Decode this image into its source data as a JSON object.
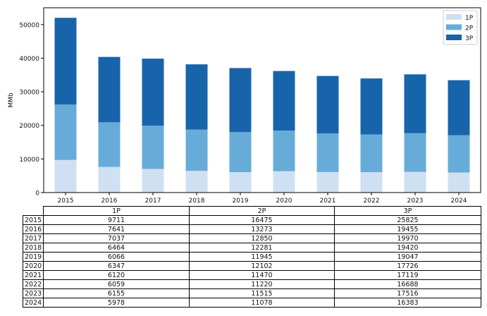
{
  "chart_data": {
    "type": "bar",
    "stacked": true,
    "categories": [
      "2015",
      "2016",
      "2017",
      "2018",
      "2019",
      "2020",
      "2021",
      "2022",
      "2023",
      "2024"
    ],
    "series": [
      {
        "name": "1P",
        "values": [
          9711,
          7641,
          7037,
          6464,
          6066,
          6347,
          6120,
          6059,
          6155,
          5978
        ]
      },
      {
        "name": "2P",
        "values": [
          16475,
          13273,
          12850,
          12281,
          11945,
          12102,
          11470,
          11220,
          11515,
          11078
        ]
      },
      {
        "name": "3P",
        "values": [
          25825,
          19455,
          19970,
          19420,
          19047,
          17726,
          17119,
          16688,
          17516,
          16383
        ]
      }
    ],
    "ylabel": "MMb",
    "ylim": [
      0,
      55000
    ],
    "yticks": [
      "0",
      "10000",
      "20000",
      "30000",
      "40000",
      "50000"
    ],
    "legend_position": "top-right",
    "colors": {
      "1P": "#cfe0f3",
      "2P": "#67acd8",
      "3P": "#1764ab"
    },
    "table": {
      "columns": [
        "1P",
        "2P",
        "3P"
      ],
      "rows": [
        {
          "label": "2015",
          "values": [
            "9711",
            "16475",
            "25825"
          ]
        },
        {
          "label": "2016",
          "values": [
            "7641",
            "13273",
            "19455"
          ]
        },
        {
          "label": "2017",
          "values": [
            "7037",
            "12850",
            "19970"
          ]
        },
        {
          "label": "2018",
          "values": [
            "6464",
            "12281",
            "19420"
          ]
        },
        {
          "label": "2019",
          "values": [
            "6066",
            "11945",
            "19047"
          ]
        },
        {
          "label": "2020",
          "values": [
            "6347",
            "12102",
            "17726"
          ]
        },
        {
          "label": "2021",
          "values": [
            "6120",
            "11470",
            "17119"
          ]
        },
        {
          "label": "2022",
          "values": [
            "6059",
            "11220",
            "16688"
          ]
        },
        {
          "label": "2023",
          "values": [
            "6155",
            "11515",
            "17516"
          ]
        },
        {
          "label": "2024",
          "values": [
            "5978",
            "11078",
            "16383"
          ]
        }
      ]
    }
  }
}
